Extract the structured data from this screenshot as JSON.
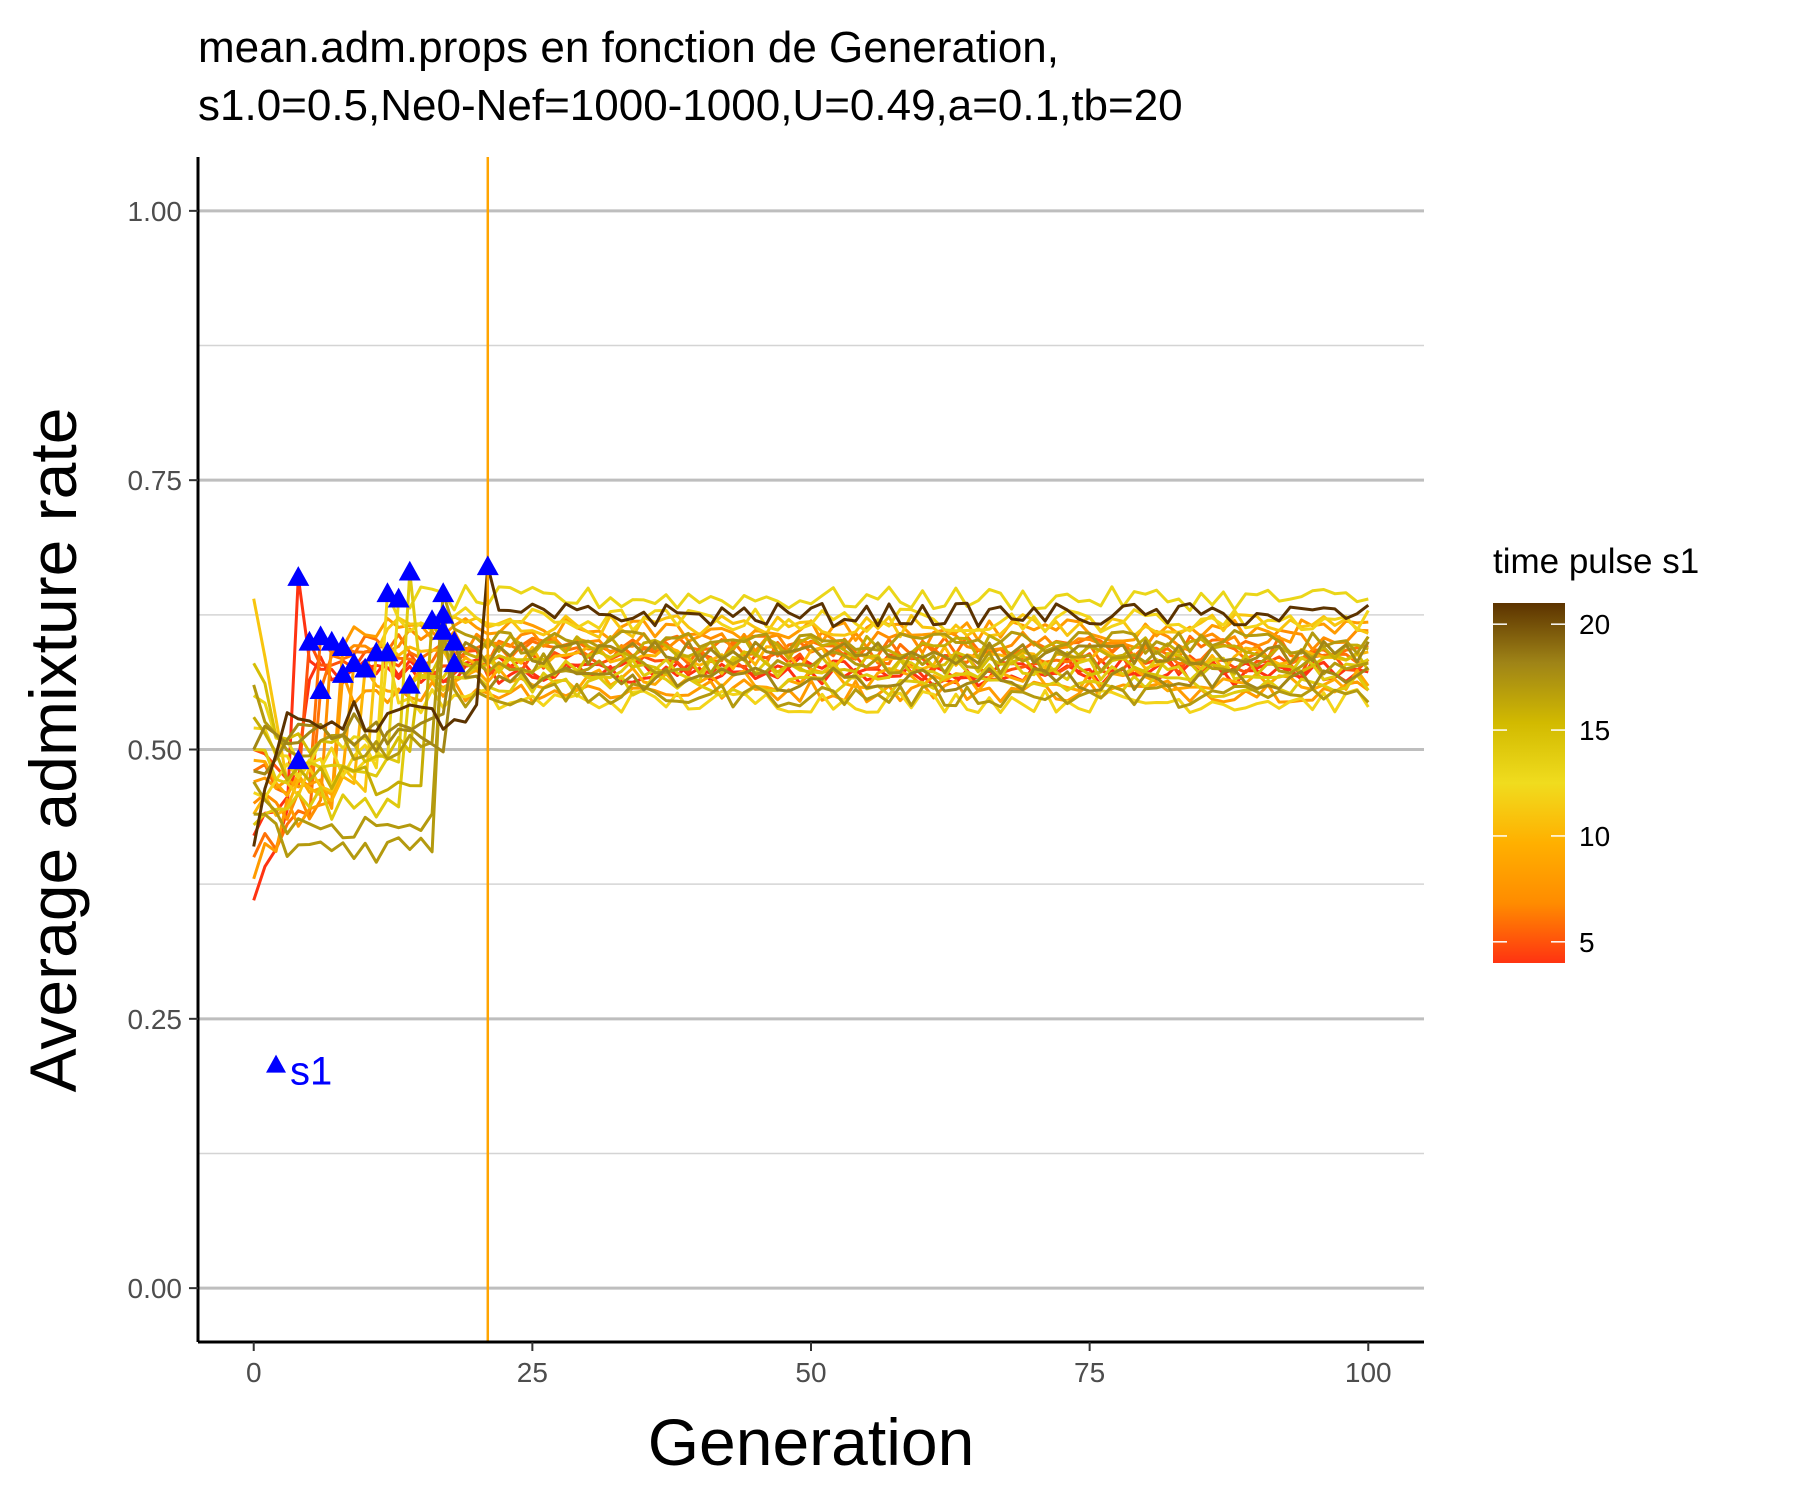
{
  "chart_data": {
    "type": "line",
    "title_lines": [
      "mean.adm.props en fonction de Generation,",
      "s1.0=0.5,Ne0-Nef=1000-1000,U=0.49,a=0.1,tb=20"
    ],
    "xlabel": "Generation",
    "ylabel": "Average admixture rate",
    "xlim": [
      -5,
      105
    ],
    "ylim": [
      -0.05,
      1.05
    ],
    "xticks": [
      0,
      25,
      50,
      75,
      100
    ],
    "xtick_labels": [
      "0",
      "25",
      "50",
      "75",
      "100"
    ],
    "yticks": [
      0.0,
      0.25,
      0.5,
      0.75,
      1.0
    ],
    "ytick_labels": [
      "0.00",
      "0.25",
      "0.50",
      "0.75",
      "1.00"
    ],
    "minor_yticks": [
      0.125,
      0.375,
      0.625,
      0.875
    ],
    "vline": {
      "x": 21,
      "color": "#FFA500"
    },
    "annotation": {
      "text": "s1",
      "x": 2,
      "y": 0.2,
      "color": "#0000FF"
    },
    "legend": {
      "title": "time pulse s1",
      "min": 4,
      "max": 21,
      "ticks": [
        5,
        10,
        15,
        20
      ],
      "tick_labels": [
        "5",
        "10",
        "15",
        "20"
      ],
      "placement": "right",
      "colors": [
        "#FF3311",
        "#FF8C00",
        "#FFB000",
        "#F0DC1E",
        "#D2BA00",
        "#9F8417",
        "#5C3300"
      ]
    },
    "pulse_marker_color": "#0000FF",
    "series": [
      {
        "pulse": 4,
        "start": 0.36,
        "pre": 0.44,
        "post": 0.57,
        "peak": 0.66
      },
      {
        "pulse": 4,
        "start": 0.42,
        "pre": 0.45,
        "post": 0.575,
        "peak": 0.49
      },
      {
        "pulse": 5,
        "start": 0.5,
        "pre": 0.47,
        "post": 0.58,
        "peak": 0.6
      },
      {
        "pulse": 6,
        "start": 0.48,
        "pre": 0.46,
        "post": 0.59,
        "peak": 0.605
      },
      {
        "pulse": 6,
        "start": 0.4,
        "pre": 0.43,
        "post": 0.595,
        "peak": 0.555
      },
      {
        "pulse": 7,
        "start": 0.45,
        "pre": 0.45,
        "post": 0.6,
        "peak": 0.6
      },
      {
        "pulse": 8,
        "start": 0.38,
        "pre": 0.44,
        "post": 0.61,
        "peak": 0.595
      },
      {
        "pulse": 8,
        "start": 0.47,
        "pre": 0.46,
        "post": 0.555,
        "peak": 0.57
      },
      {
        "pulse": 9,
        "start": 0.49,
        "pre": 0.47,
        "post": 0.565,
        "peak": 0.58
      },
      {
        "pulse": 10,
        "start": 0.44,
        "pre": 0.46,
        "post": 0.585,
        "peak": 0.575
      },
      {
        "pulse": 11,
        "start": 0.64,
        "pre": 0.47,
        "post": 0.615,
        "peak": 0.59
      },
      {
        "pulse": 12,
        "start": 0.46,
        "pre": 0.48,
        "post": 0.62,
        "peak": 0.645
      },
      {
        "pulse": 12,
        "start": 0.52,
        "pre": 0.49,
        "post": 0.545,
        "peak": 0.59
      },
      {
        "pulse": 13,
        "start": 0.55,
        "pre": 0.5,
        "post": 0.64,
        "peak": 0.64
      },
      {
        "pulse": 14,
        "start": 0.5,
        "pre": 0.48,
        "post": 0.56,
        "peak": 0.665
      },
      {
        "pulse": 14,
        "start": 0.43,
        "pre": 0.45,
        "post": 0.575,
        "peak": 0.56
      },
      {
        "pulse": 15,
        "start": 0.58,
        "pre": 0.5,
        "post": 0.58,
        "peak": 0.58
      },
      {
        "pulse": 16,
        "start": 0.53,
        "pre": 0.47,
        "post": 0.595,
        "peak": 0.62
      },
      {
        "pulse": 17,
        "start": 0.56,
        "pre": 0.5,
        "post": 0.6,
        "peak": 0.645
      },
      {
        "pulse": 17,
        "start": 0.47,
        "pre": 0.43,
        "post": 0.55,
        "peak": 0.61
      },
      {
        "pulse": 17,
        "start": 0.44,
        "pre": 0.41,
        "post": 0.58,
        "peak": 0.625
      },
      {
        "pulse": 18,
        "start": 0.5,
        "pre": 0.52,
        "post": 0.565,
        "peak": 0.6
      },
      {
        "pulse": 18,
        "start": 0.48,
        "pre": 0.51,
        "post": 0.59,
        "peak": 0.58
      },
      {
        "pulse": 21,
        "start": 0.41,
        "pre": 0.53,
        "post": 0.625,
        "peak": 0.67
      }
    ]
  }
}
